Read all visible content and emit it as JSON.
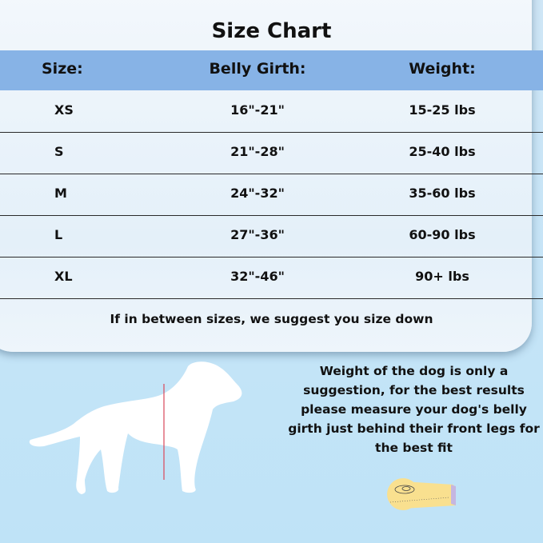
{
  "title": "Size Chart",
  "headers": [
    "Size:",
    "Belly Girth:",
    "Weight:"
  ],
  "rows": [
    {
      "size": "XS",
      "girth": "16\"-21\"",
      "weight": "15-25 lbs"
    },
    {
      "size": "S",
      "girth": "21\"-28\"",
      "weight": "25-40 lbs"
    },
    {
      "size": "M",
      "girth": "24\"-32\"",
      "weight": "35-60 lbs"
    },
    {
      "size": "L",
      "girth": "27\"-36\"",
      "weight": "60-90 lbs"
    },
    {
      "size": "XL",
      "girth": "32\"-46\"",
      "weight": "90+ lbs"
    }
  ],
  "note": "If in between sizes, we suggest you size down",
  "description": "Weight of the dog is only a suggestion, for the best results please measure your dog's belly girth just behind their front legs for the best fit",
  "colors": {
    "header": "#87b3e6",
    "background": "#c4e4f7",
    "measure_line": "#d9475a"
  },
  "icons": [
    "dog-silhouette-icon",
    "measuring-tape-icon"
  ]
}
